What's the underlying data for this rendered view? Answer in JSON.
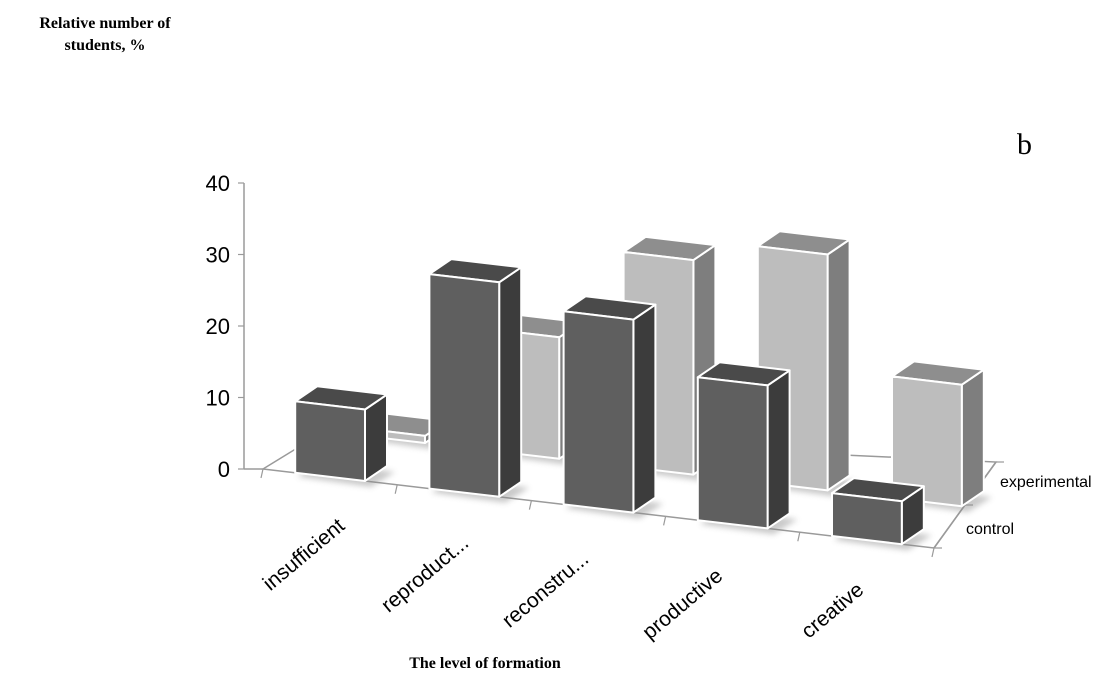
{
  "chart_data": {
    "type": "bar",
    "title": "",
    "ylabel": "Relative number of students, %",
    "ylabel_lines": [
      "Relative number of",
      "students, %"
    ],
    "xlabel": "The level of formation",
    "panel_letter": "b",
    "categories": [
      "insufficient",
      "reproduct...",
      "reconstru...",
      "productive",
      "creative"
    ],
    "depth_categories": [
      "control",
      "experimental"
    ],
    "yticks": [
      "0",
      "10",
      "20",
      "30",
      "40"
    ],
    "ylim": [
      0,
      40
    ],
    "grid": false,
    "series": [
      {
        "name": "control",
        "values": [
          10,
          30,
          27,
          20,
          6
        ]
      },
      {
        "name": "experimental",
        "values": [
          1,
          17,
          30,
          33,
          17
        ]
      }
    ],
    "colors": {
      "control_front": "#5f5f5f",
      "control_side": "#3c3c3c",
      "control_top": "#4a4a4a",
      "experimental_front": "#bdbdbd",
      "experimental_side": "#7e7e7e",
      "experimental_top": "#8e8e8e",
      "axis": "#9a9a9a",
      "edge": "#ffffff"
    }
  }
}
